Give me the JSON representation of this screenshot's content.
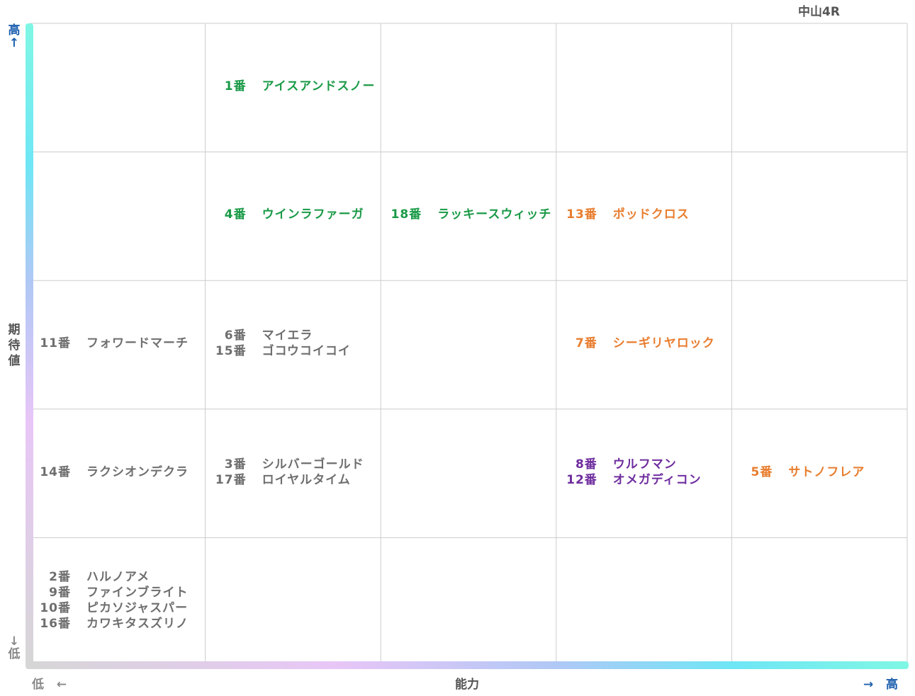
{
  "title": "中山4R",
  "axes": {
    "y_high": "高",
    "y_low": "低",
    "y_label": "期待値",
    "x_low": "低",
    "x_label": "能力",
    "x_high": "高",
    "arrow_up": "↑",
    "arrow_down": "↓",
    "arrow_left": "←",
    "arrow_right": "→"
  },
  "colors": {
    "green": "#1a9a47",
    "orange": "#e87d2e",
    "purple": "#6f2d9e",
    "gray": "#6e6e6e",
    "grid": "#cccccc"
  },
  "chart_data": {
    "type": "table",
    "xlabel": "能力",
    "ylabel": "期待値",
    "columns": 5,
    "rows": 5,
    "cells": [
      {
        "row": 1,
        "col": 2,
        "color": "green",
        "entries": [
          {
            "num": "1番",
            "name": "アイスアンドスノー"
          }
        ]
      },
      {
        "row": 2,
        "col": 2,
        "color": "green",
        "entries": [
          {
            "num": "4番",
            "name": "ウインラファーガ"
          }
        ]
      },
      {
        "row": 2,
        "col": 3,
        "color": "green",
        "entries": [
          {
            "num": "18番",
            "name": "ラッキースウィッチ"
          }
        ]
      },
      {
        "row": 2,
        "col": 4,
        "color": "orange",
        "entries": [
          {
            "num": "13番",
            "name": "ポッドクロス"
          }
        ]
      },
      {
        "row": 3,
        "col": 1,
        "color": "gray",
        "entries": [
          {
            "num": "11番",
            "name": "フォワードマーチ"
          }
        ]
      },
      {
        "row": 3,
        "col": 2,
        "color": "gray",
        "entries": [
          {
            "num": "6番",
            "name": "マイエラ"
          },
          {
            "num": "15番",
            "name": "ゴコウコイコイ"
          }
        ]
      },
      {
        "row": 3,
        "col": 4,
        "color": "orange",
        "entries": [
          {
            "num": "7番",
            "name": "シーギリヤロック"
          }
        ]
      },
      {
        "row": 4,
        "col": 1,
        "color": "gray",
        "entries": [
          {
            "num": "14番",
            "name": "ラクシオンデクラ"
          }
        ]
      },
      {
        "row": 4,
        "col": 2,
        "color": "gray",
        "entries": [
          {
            "num": "3番",
            "name": "シルバーゴールド"
          },
          {
            "num": "17番",
            "name": "ロイヤルタイム"
          }
        ]
      },
      {
        "row": 4,
        "col": 4,
        "color": "purple",
        "entries": [
          {
            "num": "8番",
            "name": "ウルフマン"
          },
          {
            "num": "12番",
            "name": "オメガディコン"
          }
        ]
      },
      {
        "row": 4,
        "col": 5,
        "color": "orange",
        "entries": [
          {
            "num": "5番",
            "name": "サトノフレア"
          }
        ]
      },
      {
        "row": 5,
        "col": 1,
        "color": "gray",
        "entries": [
          {
            "num": "2番",
            "name": "ハルノアメ"
          },
          {
            "num": "9番",
            "name": "ファインブライト"
          },
          {
            "num": "10番",
            "name": "ピカソジャスパー"
          },
          {
            "num": "16番",
            "name": "カワキタスズリノ"
          }
        ]
      }
    ]
  }
}
